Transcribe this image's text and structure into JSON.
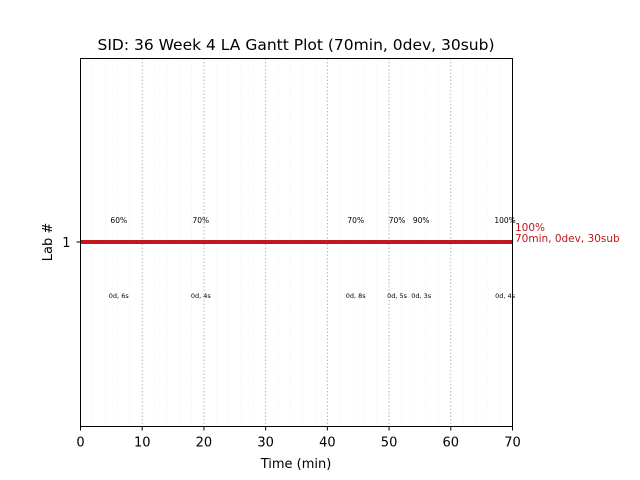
{
  "chart_data": {
    "type": "gantt",
    "title": "SID: 36 Week 4 LA Gantt Plot (70min, 0dev, 30sub)",
    "xlabel": "Time (min)",
    "ylabel": "Lab #",
    "xlim": [
      0,
      70
    ],
    "x_ticks": [
      "0",
      "10",
      "20",
      "30",
      "40",
      "50",
      "60",
      "70"
    ],
    "y_ticks": [
      "1"
    ],
    "bar": {
      "lab": 1,
      "start": 0,
      "end": 70,
      "color": "#c0161c"
    },
    "bar_label": {
      "line1": "100%",
      "line2": "70min, 0dev, 30sub",
      "color": "#c0161c"
    },
    "events": [
      {
        "x": 6.2,
        "score": "60%",
        "detail": "0d, 6s"
      },
      {
        "x": 19.5,
        "score": "70%",
        "detail": "0d, 4s"
      },
      {
        "x": 44.6,
        "score": "70%",
        "detail": "0d, 8s"
      },
      {
        "x": 51.3,
        "score": "70%",
        "detail": "0d, 5s"
      },
      {
        "x": 55.2,
        "score": "90%",
        "detail": "0d, 3s"
      },
      {
        "x": 68.8,
        "score": "100%",
        "detail": "0d, 4s"
      }
    ],
    "major_gridlines": [
      10,
      20,
      30,
      40,
      50,
      60
    ],
    "grid": true
  }
}
